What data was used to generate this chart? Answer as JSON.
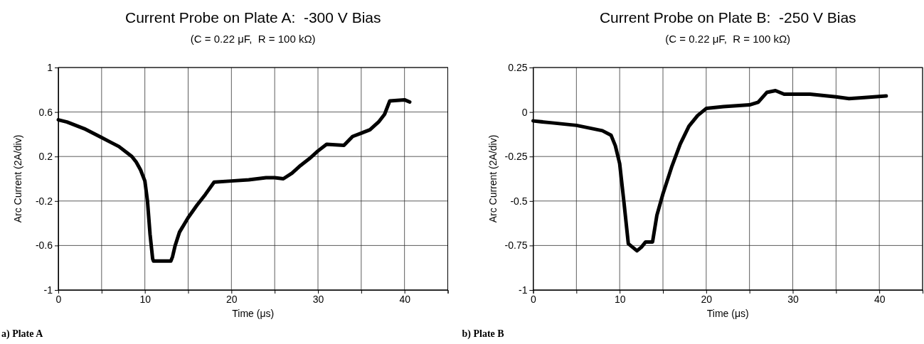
{
  "chart_data": [
    {
      "type": "line",
      "title": "Current Probe on Plate A:  -300 V Bias",
      "subtitle": "(C = 0.22 μF,  R = 100 kΩ)",
      "xlabel": "Time (μs)",
      "ylabel": "Arc Current (2A/div)",
      "annotations": [
        "a) Plate A"
      ],
      "grid": true,
      "xlim": [
        0,
        45
      ],
      "xticks": [
        0,
        {
          "value": 5,
          "label": null
        },
        10,
        {
          "value": 15,
          "label": null
        },
        20,
        {
          "value": 25,
          "label": null
        },
        30,
        {
          "value": 35,
          "label": null
        },
        40,
        {
          "value": 45,
          "label": null
        }
      ],
      "ylim": [
        -1,
        1
      ],
      "yticks": [
        -1,
        -0.6,
        -0.2,
        0.2,
        0.6,
        1
      ],
      "series": [
        {
          "color": "#000000",
          "x": [
            0,
            1,
            2,
            3,
            4,
            5,
            6,
            7,
            8,
            8.5,
            9,
            9.5,
            10,
            10.3,
            10.6,
            10.9,
            11,
            12,
            13,
            13.2,
            13.5,
            14,
            15,
            16,
            17,
            18,
            20,
            22,
            24,
            25,
            26,
            27,
            28,
            29,
            30,
            31,
            33,
            34,
            35,
            36,
            37,
            37.7,
            38.3,
            40,
            40.6
          ],
          "values": [
            0.53,
            0.51,
            0.48,
            0.45,
            0.41,
            0.37,
            0.33,
            0.29,
            0.23,
            0.2,
            0.15,
            0.08,
            -0.02,
            -0.2,
            -0.5,
            -0.72,
            -0.74,
            -0.74,
            -0.74,
            -0.7,
            -0.6,
            -0.48,
            -0.35,
            -0.24,
            -0.14,
            -0.03,
            -0.02,
            -0.01,
            0.01,
            0.01,
            0.0,
            0.05,
            0.12,
            0.18,
            0.25,
            0.31,
            0.3,
            0.38,
            0.41,
            0.44,
            0.51,
            0.58,
            0.7,
            0.71,
            0.69
          ]
        }
      ]
    },
    {
      "type": "line",
      "title": "Current Probe on Plate B:  -250 V Bias",
      "subtitle": "(C = 0.22 μF,  R = 100 kΩ)",
      "xlabel": "Time (μs)",
      "ylabel": "Arc Current (2A/div)",
      "annotations": [
        "b) Plate B"
      ],
      "grid": true,
      "xlim": [
        0,
        45
      ],
      "xticks": [
        0,
        {
          "value": 5,
          "label": null
        },
        10,
        {
          "value": 15,
          "label": null
        },
        20,
        {
          "value": 25,
          "label": null
        },
        30,
        {
          "value": 35,
          "label": null
        },
        40,
        {
          "value": 45,
          "label": null
        }
      ],
      "ylim": [
        -1,
        0.25
      ],
      "yticks": [
        -1,
        -0.75,
        -0.5,
        -0.25,
        0,
        0.25
      ],
      "series": [
        {
          "color": "#000000",
          "x": [
            0,
            2,
            5,
            8,
            9,
            9.5,
            10,
            10.5,
            11,
            11.5,
            12,
            12.5,
            13,
            13.8,
            14.3,
            15,
            16,
            17,
            18,
            19,
            20,
            22,
            25,
            26,
            27,
            28,
            29,
            32,
            35,
            36.5,
            38,
            40.8
          ],
          "values": [
            -0.05,
            -0.06,
            -0.075,
            -0.105,
            -0.13,
            -0.19,
            -0.29,
            -0.51,
            -0.74,
            -0.76,
            -0.78,
            -0.76,
            -0.73,
            -0.73,
            -0.58,
            -0.46,
            -0.31,
            -0.18,
            -0.08,
            -0.02,
            0.02,
            0.03,
            0.04,
            0.055,
            0.11,
            0.12,
            0.1,
            0.1,
            0.085,
            0.075,
            0.08,
            0.09
          ]
        }
      ]
    }
  ]
}
